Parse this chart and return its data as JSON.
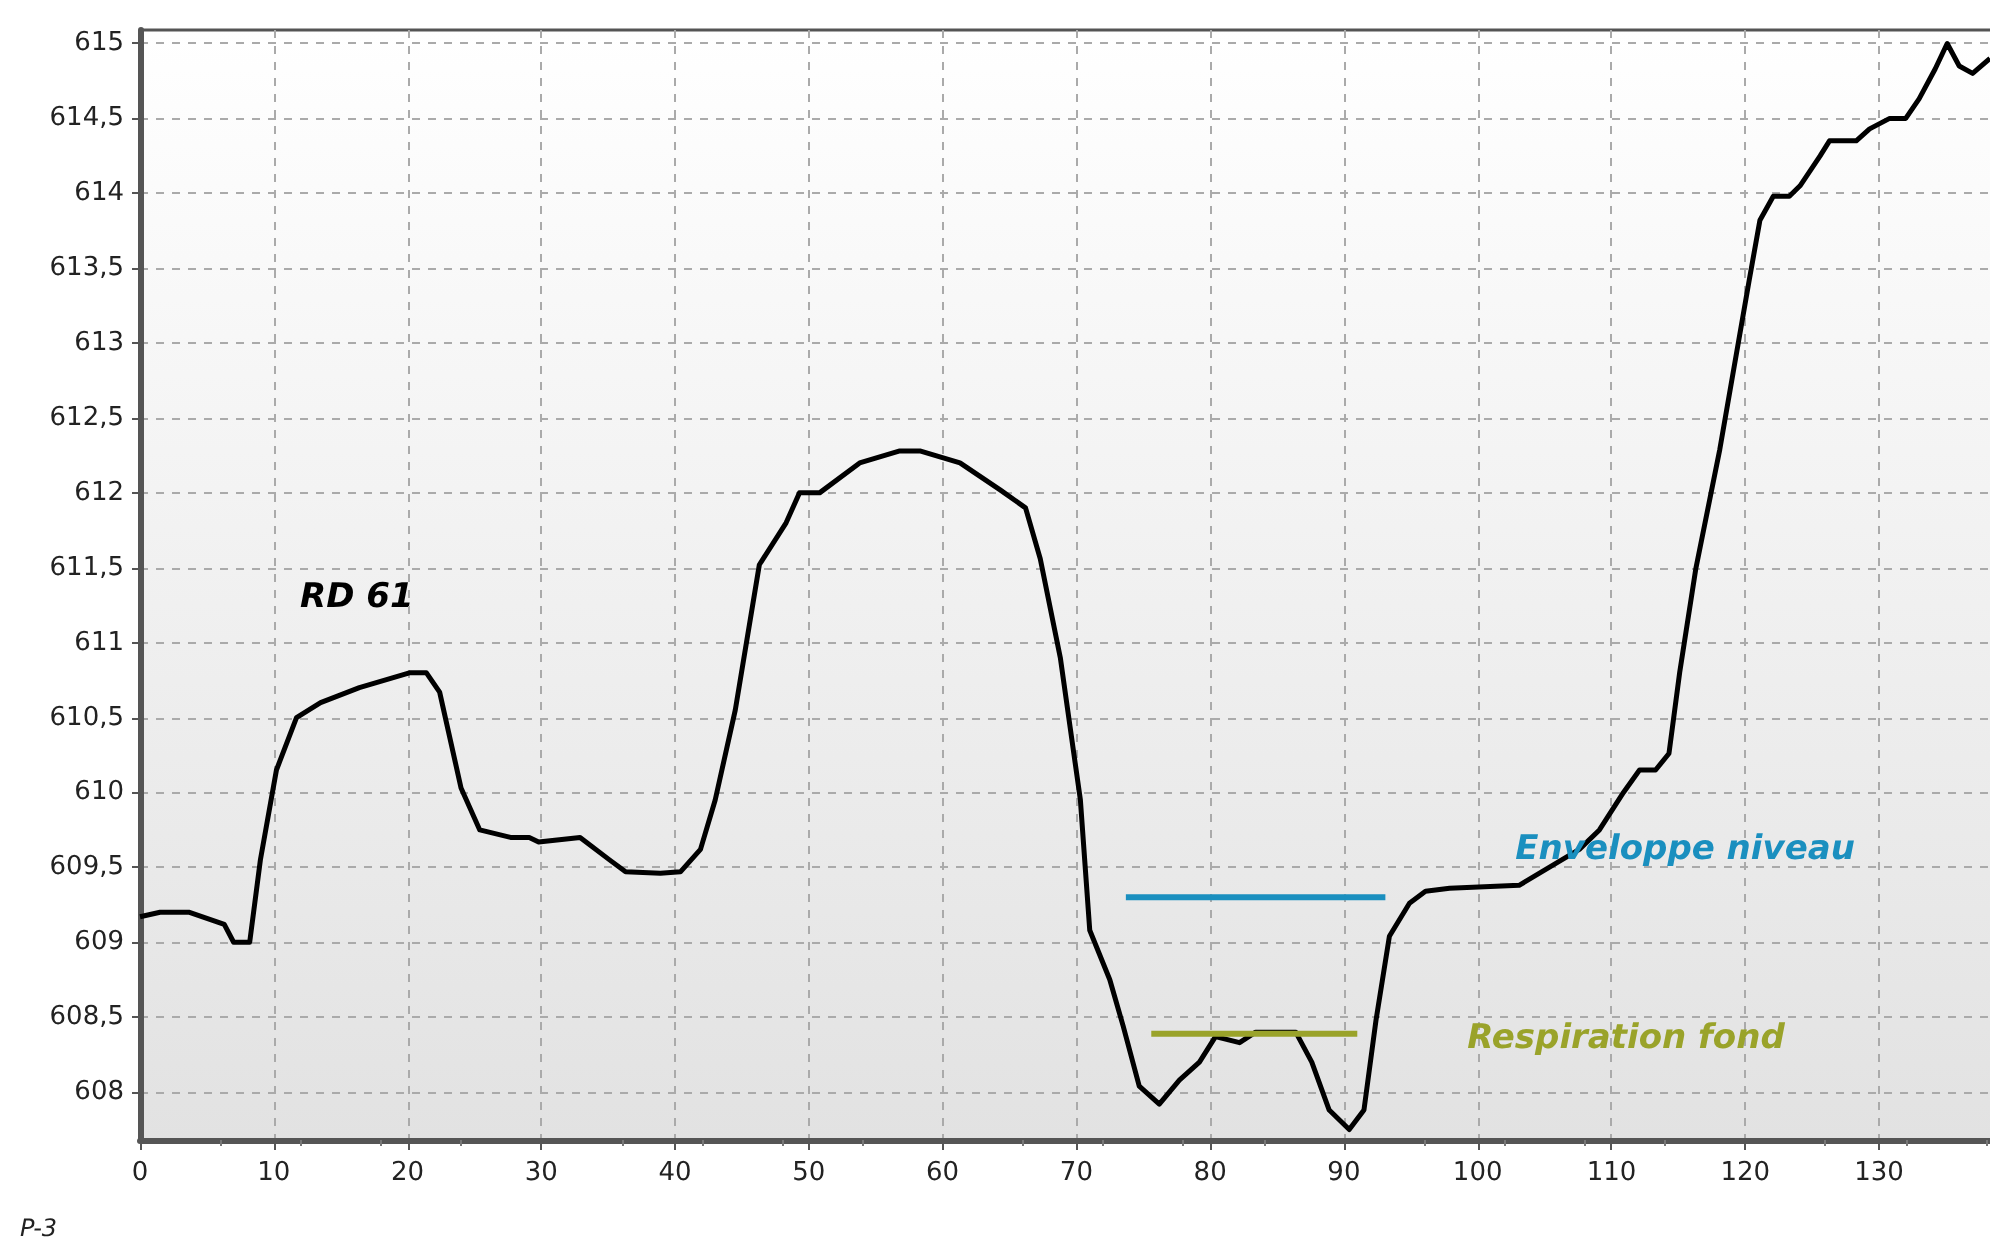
{
  "chart_data": {
    "type": "line",
    "grid": true,
    "marker": "none",
    "line_style": "solid",
    "legend": false,
    "xlim": [
      0,
      138.3
    ],
    "xticks": [
      0,
      10,
      20,
      30,
      40,
      50,
      60,
      70,
      80,
      90,
      100,
      110,
      120,
      130
    ],
    "ylim": [
      607.68,
      615.09
    ],
    "yticks": [
      608,
      {
        "value": 608.5,
        "label": "608,5"
      },
      609,
      {
        "value": 609.5,
        "label": "609,5"
      },
      610,
      {
        "value": 610.5,
        "label": "610,5"
      },
      611,
      {
        "value": 611.5,
        "label": "611,5"
      },
      612,
      {
        "value": 612.5,
        "label": "612,5"
      },
      613,
      {
        "value": 613.5,
        "label": "613,5"
      },
      614,
      {
        "value": 614.5,
        "label": "614,5"
      },
      615
    ],
    "series": [
      {
        "color": "#000000",
        "x": [
          0,
          1.5,
          3.7,
          6.3,
          7,
          8.2,
          9,
          10.2,
          11.7,
          13.5,
          16.4,
          20.2,
          21.4,
          22.4,
          24,
          25.4,
          27.7,
          29.1,
          29.8,
          32.9,
          35.1,
          36.3,
          38.9,
          40.4,
          41.9,
          43,
          44.5,
          46.3,
          48.3,
          49.3,
          50.8,
          53.8,
          56.8,
          58.3,
          61.3,
          64.3,
          66.2,
          67.3,
          68.8,
          70.3,
          71,
          72.5,
          73.5,
          74.7,
          76.2,
          77.7,
          79.2,
          80.4,
          82.2,
          83.4,
          86.4,
          87.6,
          88.9,
          90.4,
          91.5,
          92.4,
          93.4,
          94.9,
          96.1,
          97.9,
          103.1,
          107.6,
          109.1,
          110.9,
          112.1,
          113.3,
          114.3,
          115.1,
          116.3,
          118.1,
          120.3,
          121.1,
          122.1,
          123.3,
          124.1,
          125.6,
          126.3,
          128.3,
          129.3,
          130.8,
          132,
          133,
          134.2,
          135.1,
          136,
          137,
          138.3
        ],
        "values": [
          609.17,
          609.2,
          609.2,
          609.12,
          609.0,
          609.0,
          609.55,
          610.15,
          610.5,
          610.6,
          610.7,
          610.8,
          610.8,
          610.67,
          610.03,
          609.75,
          609.7,
          609.7,
          609.67,
          609.7,
          609.55,
          609.47,
          609.46,
          609.47,
          609.62,
          609.95,
          610.55,
          611.52,
          611.8,
          612.0,
          612.0,
          612.2,
          612.28,
          612.28,
          612.2,
          612.02,
          611.9,
          611.56,
          610.9,
          609.95,
          609.08,
          608.75,
          608.44,
          608.04,
          607.92,
          608.08,
          608.2,
          608.37,
          608.33,
          608.4,
          608.4,
          608.2,
          607.88,
          607.75,
          607.88,
          608.48,
          609.04,
          609.26,
          609.34,
          609.36,
          609.38,
          609.62,
          609.75,
          610.0,
          610.15,
          610.15,
          610.26,
          610.8,
          611.49,
          612.29,
          613.42,
          613.82,
          613.98,
          613.98,
          614.05,
          614.25,
          614.35,
          614.35,
          614.43,
          614.5,
          614.5,
          614.63,
          614.83,
          615.0,
          614.85,
          614.8,
          614.9
        ]
      },
      {
        "name": "Enveloppe niveau",
        "color": "#1a8fbf",
        "x": [
          73.7,
          93.1
        ],
        "values": [
          609.3,
          609.3
        ]
      },
      {
        "name": "Respiration fond",
        "color": "#9aa32a",
        "x": [
          75.6,
          91
        ],
        "values": [
          608.39,
          608.39
        ]
      }
    ],
    "annotations": [
      "RD 61",
      "P-3"
    ]
  }
}
